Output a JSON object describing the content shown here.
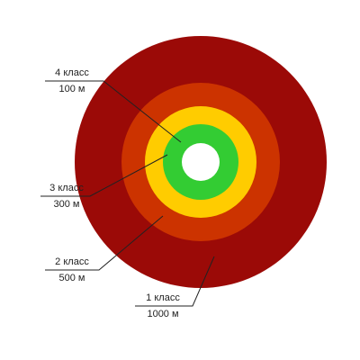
{
  "zones": [
    {
      "class": "4 класс",
      "distance": "100 м"
    },
    {
      "class": "3 класс",
      "distance": "300 м"
    },
    {
      "class": "2 класс",
      "distance": "500 м"
    },
    {
      "class": "1 класс",
      "distance": "1000 м"
    }
  ]
}
